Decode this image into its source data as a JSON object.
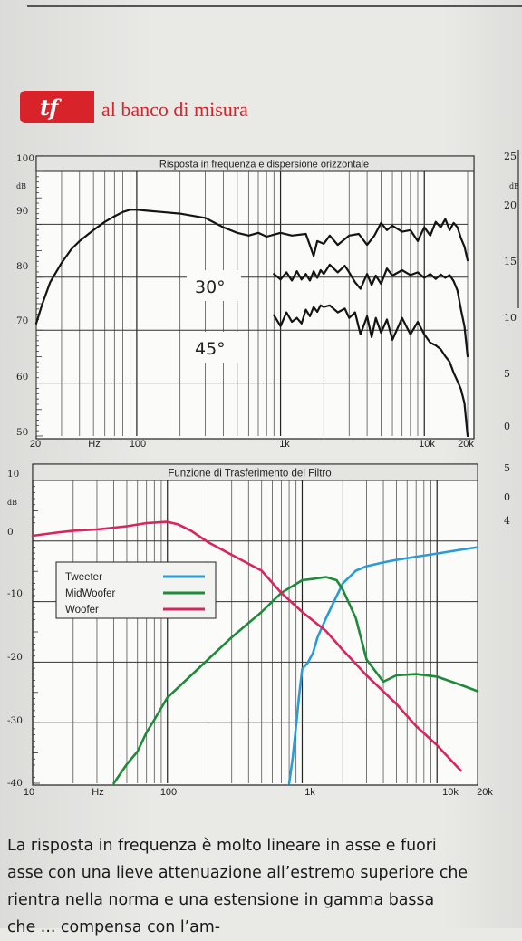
{
  "header": {
    "logo_text": "tf",
    "section_title": "al banco di misura"
  },
  "chart_data": [
    {
      "type": "line",
      "title": "Risposta in frequenza e dispersione orizzontale",
      "x_scale": "log",
      "xlim": [
        20,
        20000
      ],
      "ylim": [
        50,
        100
      ],
      "x_ticklabels": [
        "20",
        "Hz",
        "100",
        "1k",
        "10k",
        "20k"
      ],
      "y_ticklabels": [
        "100",
        "dB",
        "90",
        "80",
        "70",
        "60",
        "50"
      ],
      "grid": true,
      "series": [
        {
          "name": "",
          "x": [
            20,
            22,
            25,
            30,
            35,
            40,
            50,
            60,
            70,
            80,
            90,
            100,
            120,
            150,
            200,
            300,
            400,
            500,
            600,
            700,
            800,
            1000,
            1200,
            1500,
            1700,
            1800,
            2000,
            2200,
            2500,
            3000,
            3500,
            4000,
            4500,
            5000,
            5500,
            6000,
            7000,
            8000,
            9000,
            10000,
            11000,
            12000,
            13000,
            14000,
            15000,
            16000,
            17000,
            18000,
            19000,
            20000
          ],
          "y": [
            70.5,
            74,
            78,
            81.5,
            84,
            85.5,
            87.5,
            89,
            90,
            90.8,
            91.2,
            91.2,
            91,
            90.8,
            90.5,
            89.7,
            88,
            87,
            86.5,
            87,
            86.3,
            87,
            86.5,
            86.8,
            82.8,
            85.5,
            85,
            86.5,
            84.8,
            86.5,
            86.8,
            84.8,
            86.5,
            88.8,
            87.5,
            88.3,
            87.2,
            87.5,
            85.5,
            88,
            86.5,
            89,
            88,
            89.5,
            87.5,
            88.8,
            88,
            86,
            84.5,
            82
          ]
        },
        {
          "name": "30°",
          "x": [
            900,
            1000,
            1100,
            1200,
            1300,
            1400,
            1500,
            1600,
            1700,
            1800,
            1900,
            2000,
            2200,
            2500,
            2800,
            3000,
            3300,
            3600,
            4000,
            4300,
            4600,
            5000,
            5500,
            6000,
            7000,
            8000,
            9000,
            10000,
            11000,
            12000,
            13000,
            14000,
            15000,
            16000,
            17000,
            18000,
            19000,
            20000
          ],
          "y": [
            79.5,
            78.5,
            79.8,
            78.3,
            80,
            78.5,
            79.5,
            78.3,
            80,
            78.8,
            80.2,
            79.5,
            81.2,
            79.8,
            81,
            79.8,
            78,
            76.8,
            79.5,
            77.5,
            79.2,
            77.7,
            80.5,
            79.2,
            80.2,
            79.3,
            79.8,
            78.8,
            79.5,
            78.6,
            79.4,
            78.8,
            79.3,
            78.2,
            76.5,
            73,
            70,
            64.5
          ]
        },
        {
          "name": "45°",
          "x": [
            900,
            1000,
            1100,
            1200,
            1300,
            1400,
            1500,
            1600,
            1700,
            1800,
            1900,
            2000,
            2200,
            2500,
            2800,
            3000,
            3300,
            3600,
            4000,
            4300,
            4600,
            5000,
            5500,
            6000,
            7000,
            8000,
            9000,
            10000,
            11000,
            12000,
            13000,
            14000,
            15000,
            16000,
            17000,
            18000,
            19000,
            20000
          ],
          "y": [
            72,
            70,
            72.5,
            70.8,
            71.5,
            70.5,
            73,
            71.8,
            73.5,
            72.6,
            73.8,
            73.5,
            73.8,
            72.5,
            73.2,
            71.5,
            72.5,
            68.5,
            71.8,
            68,
            71.5,
            68.8,
            71.2,
            67.5,
            71.5,
            68.5,
            70.8,
            68.5,
            67,
            66.5,
            65.8,
            64.5,
            63.5,
            61.5,
            60,
            58.5,
            56,
            50
          ]
        }
      ]
    },
    {
      "type": "line",
      "title": "Funzione di Trasferimento del Filtro",
      "x_scale": "log",
      "xlim": [
        10,
        20000
      ],
      "ylim": [
        -40,
        10
      ],
      "x_ticklabels": [
        "10",
        "Hz",
        "100",
        "1k",
        "10k",
        "20k"
      ],
      "y_ticklabels": [
        "10",
        "dB",
        "0",
        "-10",
        "-20",
        "-30",
        "-40"
      ],
      "grid": true,
      "legend": "top-left",
      "series": [
        {
          "name": "Tweeter",
          "color": "#2a9bd7",
          "x": [
            800,
            850,
            900,
            950,
            1000,
            1100,
            1200,
            1300,
            1500,
            1800,
            2000,
            2500,
            3000,
            4000,
            5000,
            7000,
            10000,
            15000,
            20000
          ],
          "y": [
            -40,
            -36,
            -31,
            -26,
            -22,
            -21,
            -19.5,
            -17,
            -14,
            -10.5,
            -8.5,
            -6.5,
            -5.8,
            -5.2,
            -4.8,
            -4.3,
            -3.8,
            -3.2,
            -2.8
          ]
        },
        {
          "name": "MidWoofer",
          "color": "#1e8a3a",
          "x": [
            40,
            50,
            60,
            70,
            80,
            100,
            150,
            200,
            300,
            500,
            700,
            1000,
            1200,
            1500,
            1800,
            2000,
            2500,
            3000,
            4000,
            5000,
            7000,
            10000,
            15000,
            20000
          ],
          "y": [
            -40,
            -37,
            -35,
            -32,
            -30,
            -26.5,
            -23,
            -20.5,
            -17,
            -13,
            -10,
            -8,
            -7.8,
            -7.5,
            -8,
            -9.5,
            -14,
            -20.5,
            -24,
            -23,
            -22.8,
            -23.2,
            -24.5,
            -25.5
          ]
        },
        {
          "name": "Woofer",
          "color": "#d62560",
          "x": [
            10,
            15,
            20,
            30,
            50,
            70,
            100,
            120,
            150,
            200,
            300,
            500,
            700,
            1000,
            1500,
            2000,
            3000,
            5000,
            7000,
            10000,
            15000
          ],
          "y": [
            -1,
            -0.5,
            -0.2,
            0,
            0.5,
            1,
            1.2,
            0.8,
            -0.2,
            -2,
            -4,
            -6.5,
            -10,
            -13,
            -16,
            -19,
            -23,
            -27.5,
            -31,
            -34,
            -38
          ]
        }
      ]
    }
  ],
  "curve_labels": {
    "a": "30°",
    "b": "45°"
  },
  "paragraph": [
    "La risposta in frequenza è molto lineare in asse e fuori",
    "asse con una lieve attenuazione all’estremo superiore che",
    "rientra nella norma e una estensione in gamma bassa",
    "che ... compensa con l’am-"
  ],
  "right_edge_ticks": [
    "25",
    "dB",
    "20",
    "15",
    "10",
    "5",
    "0",
    "5",
    "0",
    "4"
  ]
}
